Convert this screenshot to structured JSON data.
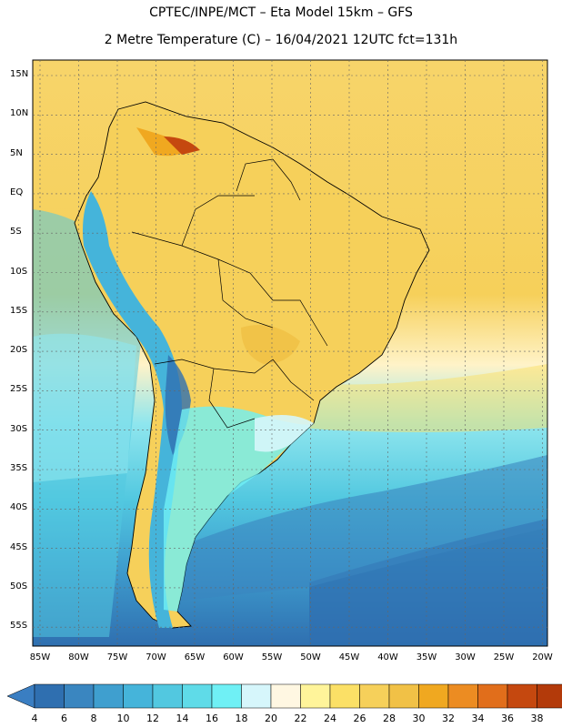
{
  "header": {
    "line1": "CPTEC/INPE/MCT –  Eta Model 15km – GFS",
    "line2": "2 Metre Temperature (C) – 16/04/2021 12UTC fct=131h"
  },
  "map": {
    "region": "South America",
    "lat_labels": [
      "15N",
      "10N",
      "5N",
      "EQ",
      "5S",
      "10S",
      "15S",
      "20S",
      "25S",
      "30S",
      "35S",
      "40S",
      "45S",
      "50S",
      "55S"
    ],
    "lon_labels": [
      "85W",
      "80W",
      "75W",
      "70W",
      "65W",
      "60W",
      "55W",
      "50W",
      "45W",
      "40W",
      "35W",
      "30W",
      "25W",
      "20W"
    ]
  },
  "colorbar": {
    "labels": [
      "4",
      "6",
      "8",
      "10",
      "12",
      "14",
      "16",
      "18",
      "20",
      "22",
      "24",
      "26",
      "28",
      "30",
      "32",
      "34",
      "36",
      "38"
    ],
    "colors": [
      "#2f6fb0",
      "#3a86c0",
      "#3f9fcf",
      "#45b4da",
      "#52c8e0",
      "#5fdbe8",
      "#6ff0f5",
      "#d6f6fb",
      "#fff7e2",
      "#fff49a",
      "#fbe066",
      "#f6d05a",
      "#f1c146",
      "#f0a820",
      "#ec8c22",
      "#e16e1b",
      "#c5480f",
      "#b33a0a"
    ],
    "low_color": "#3a7ec2",
    "high_color": "#b33a0a"
  }
}
